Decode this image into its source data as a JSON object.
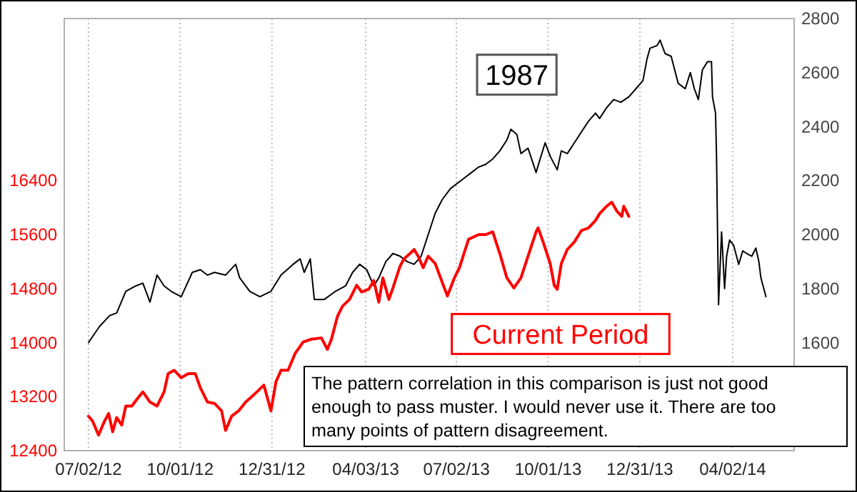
{
  "chart_data": {
    "type": "line",
    "annotations": [
      "The pattern correlation in this comparison is just not good enough to pass muster.  I would never use it.  There are too many points of pattern disagreement."
    ],
    "xlim": [
      "2012-06-08",
      "2014-06-02"
    ],
    "xticks": [
      {
        "value": "2012-07-02",
        "label": "07/02/12"
      },
      {
        "value": "2012-10-01",
        "label": "10/01/12"
      },
      {
        "value": "2012-12-31",
        "label": "12/31/12"
      },
      {
        "value": "2013-04-03",
        "label": "04/03/13"
      },
      {
        "value": "2013-07-02",
        "label": "07/02/13"
      },
      {
        "value": "2013-10-01",
        "label": "10/01/13"
      },
      {
        "value": "2013-12-31",
        "label": "12/31/13"
      },
      {
        "value": "2014-04-02",
        "label": "04/02/14"
      }
    ],
    "ylim": [
      12400,
      18800
    ],
    "yticks": [
      12400,
      13200,
      14000,
      14800,
      15600,
      16400
    ],
    "y2lim": [
      1200,
      2800
    ],
    "y2ticks": [
      1600,
      1800,
      2000,
      2200,
      2400,
      2600,
      2800
    ],
    "grid": "x",
    "legend": false,
    "series": [
      {
        "name": "1987",
        "color": "#000000",
        "axis": "y2",
        "x": [
          "2012-07-02",
          "2012-07-13",
          "2012-07-23",
          "2012-07-30",
          "2012-08-08",
          "2012-08-18",
          "2012-08-25",
          "2012-09-01",
          "2012-09-08",
          "2012-09-15",
          "2012-09-22",
          "2012-10-02",
          "2012-10-13",
          "2012-10-21",
          "2012-10-28",
          "2012-11-04",
          "2012-11-15",
          "2012-11-25",
          "2012-11-29",
          "2012-12-09",
          "2012-12-19",
          "2012-12-30",
          "2013-01-09",
          "2013-01-21",
          "2013-01-28",
          "2013-02-01",
          "2013-02-07",
          "2013-02-11",
          "2013-02-21",
          "2013-03-04",
          "2013-03-14",
          "2013-03-21",
          "2013-03-28",
          "2013-04-04",
          "2013-04-11",
          "2013-04-16",
          "2013-04-23",
          "2013-04-30",
          "2013-05-07",
          "2013-05-14",
          "2013-05-21",
          "2013-05-28",
          "2013-06-04",
          "2013-06-11",
          "2013-06-18",
          "2013-06-26",
          "2013-07-03",
          "2013-07-10",
          "2013-07-17",
          "2013-07-24",
          "2013-07-31",
          "2013-08-07",
          "2013-08-14",
          "2013-08-21",
          "2013-08-25",
          "2013-08-31",
          "2013-09-04",
          "2013-09-11",
          "2013-09-19",
          "2013-09-23",
          "2013-09-28",
          "2013-10-03",
          "2013-10-10",
          "2013-10-14",
          "2013-10-20",
          "2013-10-27",
          "2013-11-03",
          "2013-11-10",
          "2013-11-17",
          "2013-11-21",
          "2013-11-28",
          "2013-12-05",
          "2013-12-12",
          "2013-12-20",
          "2013-12-27",
          "2014-01-03",
          "2014-01-07",
          "2014-01-10",
          "2014-01-17",
          "2014-01-20",
          "2014-01-25",
          "2014-01-31",
          "2014-02-07",
          "2014-02-14",
          "2014-02-19",
          "2014-02-23",
          "2014-02-27",
          "2014-03-03",
          "2014-03-08",
          "2014-03-12",
          "2014-03-13",
          "2014-03-16",
          "2014-03-17",
          "2014-03-19",
          "2014-03-22",
          "2014-03-25",
          "2014-03-27",
          "2014-03-30",
          "2014-04-03",
          "2014-04-08",
          "2014-04-12",
          "2014-04-16",
          "2014-04-21",
          "2014-04-25",
          "2014-04-28",
          "2014-04-30",
          "2014-05-05"
        ],
        "values": [
          1600,
          1660,
          1700,
          1710,
          1790,
          1810,
          1820,
          1750,
          1850,
          1810,
          1790,
          1770,
          1860,
          1870,
          1850,
          1860,
          1850,
          1890,
          1840,
          1790,
          1770,
          1790,
          1850,
          1890,
          1910,
          1860,
          1910,
          1760,
          1760,
          1790,
          1810,
          1860,
          1890,
          1870,
          1810,
          1840,
          1900,
          1930,
          1920,
          1900,
          1890,
          1920,
          2000,
          2080,
          2130,
          2170,
          2190,
          2210,
          2230,
          2250,
          2260,
          2280,
          2310,
          2350,
          2390,
          2370,
          2300,
          2320,
          2230,
          2280,
          2340,
          2290,
          2240,
          2310,
          2300,
          2340,
          2380,
          2420,
          2450,
          2430,
          2470,
          2500,
          2490,
          2510,
          2540,
          2570,
          2650,
          2690,
          2700,
          2720,
          2670,
          2660,
          2560,
          2540,
          2600,
          2540,
          2500,
          2610,
          2640,
          2640,
          2510,
          2450,
          2290,
          1740,
          2010,
          1800,
          1920,
          1980,
          1960,
          1890,
          1940,
          1930,
          1920,
          1950,
          1900,
          1840,
          1770
        ]
      },
      {
        "name": "Current Period",
        "color": "#ff0000",
        "axis": "y",
        "x": [
          "2012-07-02",
          "2012-07-06",
          "2012-07-12",
          "2012-07-18",
          "2012-07-22",
          "2012-07-26",
          "2012-07-30",
          "2012-08-04",
          "2012-08-08",
          "2012-08-14",
          "2012-08-19",
          "2012-08-25",
          "2012-09-01",
          "2012-09-08",
          "2012-09-15",
          "2012-09-19",
          "2012-09-25",
          "2012-10-02",
          "2012-10-09",
          "2012-10-16",
          "2012-10-21",
          "2012-10-28",
          "2012-11-04",
          "2012-11-11",
          "2012-11-15",
          "2012-11-21",
          "2012-11-28",
          "2012-12-05",
          "2012-12-11",
          "2012-12-16",
          "2012-12-23",
          "2012-12-30",
          "2013-01-04",
          "2013-01-09",
          "2013-01-16",
          "2013-01-23",
          "2013-01-31",
          "2013-02-08",
          "2013-02-18",
          "2013-02-24",
          "2013-02-28",
          "2013-03-06",
          "2013-03-11",
          "2013-03-18",
          "2013-03-25",
          "2013-03-30",
          "2013-04-06",
          "2013-04-11",
          "2013-04-16",
          "2013-04-20",
          "2013-04-26",
          "2013-04-30",
          "2013-05-07",
          "2013-05-11",
          "2013-05-17",
          "2013-05-21",
          "2013-05-25",
          "2013-05-30",
          "2013-06-04",
          "2013-06-11",
          "2013-06-23",
          "2013-06-30",
          "2013-07-05",
          "2013-07-14",
          "2013-07-24",
          "2013-07-31",
          "2013-08-07",
          "2013-08-14",
          "2013-08-21",
          "2013-08-28",
          "2013-09-04",
          "2013-09-11",
          "2013-09-19",
          "2013-09-21",
          "2013-09-26",
          "2013-10-03",
          "2013-10-07",
          "2013-10-10",
          "2013-10-14",
          "2013-10-20",
          "2013-10-27",
          "2013-11-03",
          "2013-11-10",
          "2013-11-17",
          "2013-11-21",
          "2013-11-28",
          "2013-12-03",
          "2013-12-08",
          "2013-12-13",
          "2013-12-15",
          "2013-12-20"
        ],
        "values": [
          12910,
          12840,
          12630,
          12840,
          12950,
          12680,
          12890,
          12780,
          13060,
          13060,
          13160,
          13270,
          13120,
          13060,
          13270,
          13540,
          13590,
          13480,
          13540,
          13540,
          13330,
          13120,
          13100,
          12990,
          12700,
          12910,
          12990,
          13120,
          13200,
          13270,
          13370,
          12990,
          13420,
          13590,
          13590,
          13840,
          14010,
          14050,
          14070,
          13900,
          14050,
          14390,
          14540,
          14640,
          14850,
          14750,
          14790,
          14920,
          14600,
          14960,
          14640,
          14810,
          15130,
          15240,
          15320,
          15380,
          15280,
          15110,
          15280,
          15170,
          14690,
          14960,
          15110,
          15530,
          15600,
          15600,
          15640,
          15320,
          14960,
          14810,
          14960,
          15280,
          15640,
          15700,
          15490,
          15170,
          14850,
          14790,
          15170,
          15380,
          15490,
          15660,
          15700,
          15810,
          15910,
          16020,
          16080,
          15950,
          15870,
          16020,
          15870
        ]
      }
    ]
  }
}
